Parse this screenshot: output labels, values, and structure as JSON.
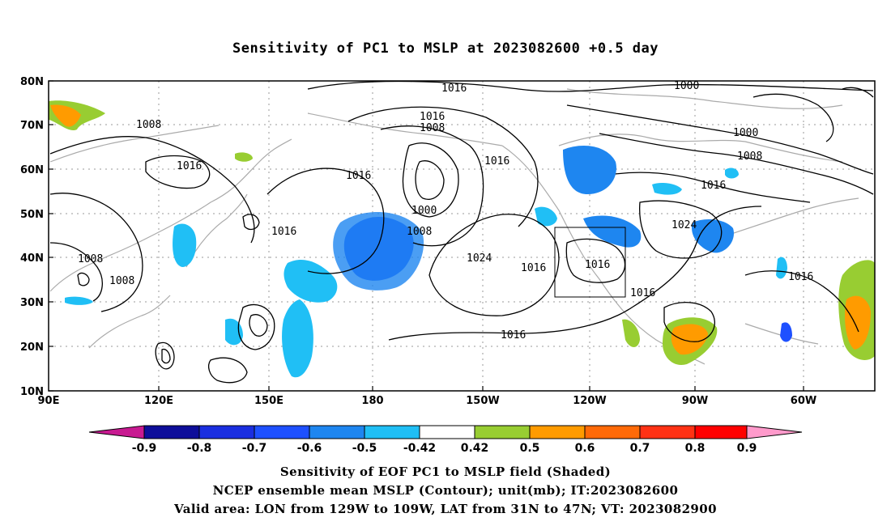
{
  "title": "Sensitivity of PC1 to MSLP at 2023082600 +0.5 day",
  "axes": {
    "lat_labels": [
      "80N",
      "70N",
      "60N",
      "50N",
      "40N",
      "30N",
      "20N",
      "10N"
    ],
    "lon_labels": [
      "90E",
      "120E",
      "150E",
      "180",
      "150W",
      "120W",
      "90W",
      "60W"
    ]
  },
  "contour_labels": [
    "1016",
    "1016",
    "1008",
    "1000",
    "1008",
    "1016",
    "1000",
    "1008",
    "1016",
    "1016",
    "1016",
    "1000",
    "1008",
    "1016",
    "1008",
    "1008",
    "1024",
    "1016",
    "1016",
    "1024",
    "1016",
    "1016",
    "1016"
  ],
  "colorbar": {
    "labels": [
      "-0.9",
      "-0.8",
      "-0.7",
      "-0.6",
      "-0.5",
      "-0.42",
      "0.42",
      "0.5",
      "0.6",
      "0.7",
      "0.8",
      "0.9"
    ],
    "colors": [
      "#c81a91",
      "#0e0e9a",
      "#1a2ee0",
      "#1e50ff",
      "#1e86f0",
      "#20bff5",
      "#ffffff",
      "#98cd32",
      "#ff9b00",
      "#ff6a08",
      "#ff3214",
      "#ff0000",
      "#ff9acb"
    ]
  },
  "valid_area_box": {
    "lon_from": "129W",
    "lon_to": "109W",
    "lat_from": "31N",
    "lat_to": "47N"
  },
  "captions": [
    "Sensitivity of EOF PC1 to MSLP field (Shaded)",
    "NCEP ensemble mean MSLP (Contour); unit(mb); IT:2023082600",
    "Valid area: LON from 129W to 109W, LAT from 31N to 47N; VT: 2023082900"
  ]
}
